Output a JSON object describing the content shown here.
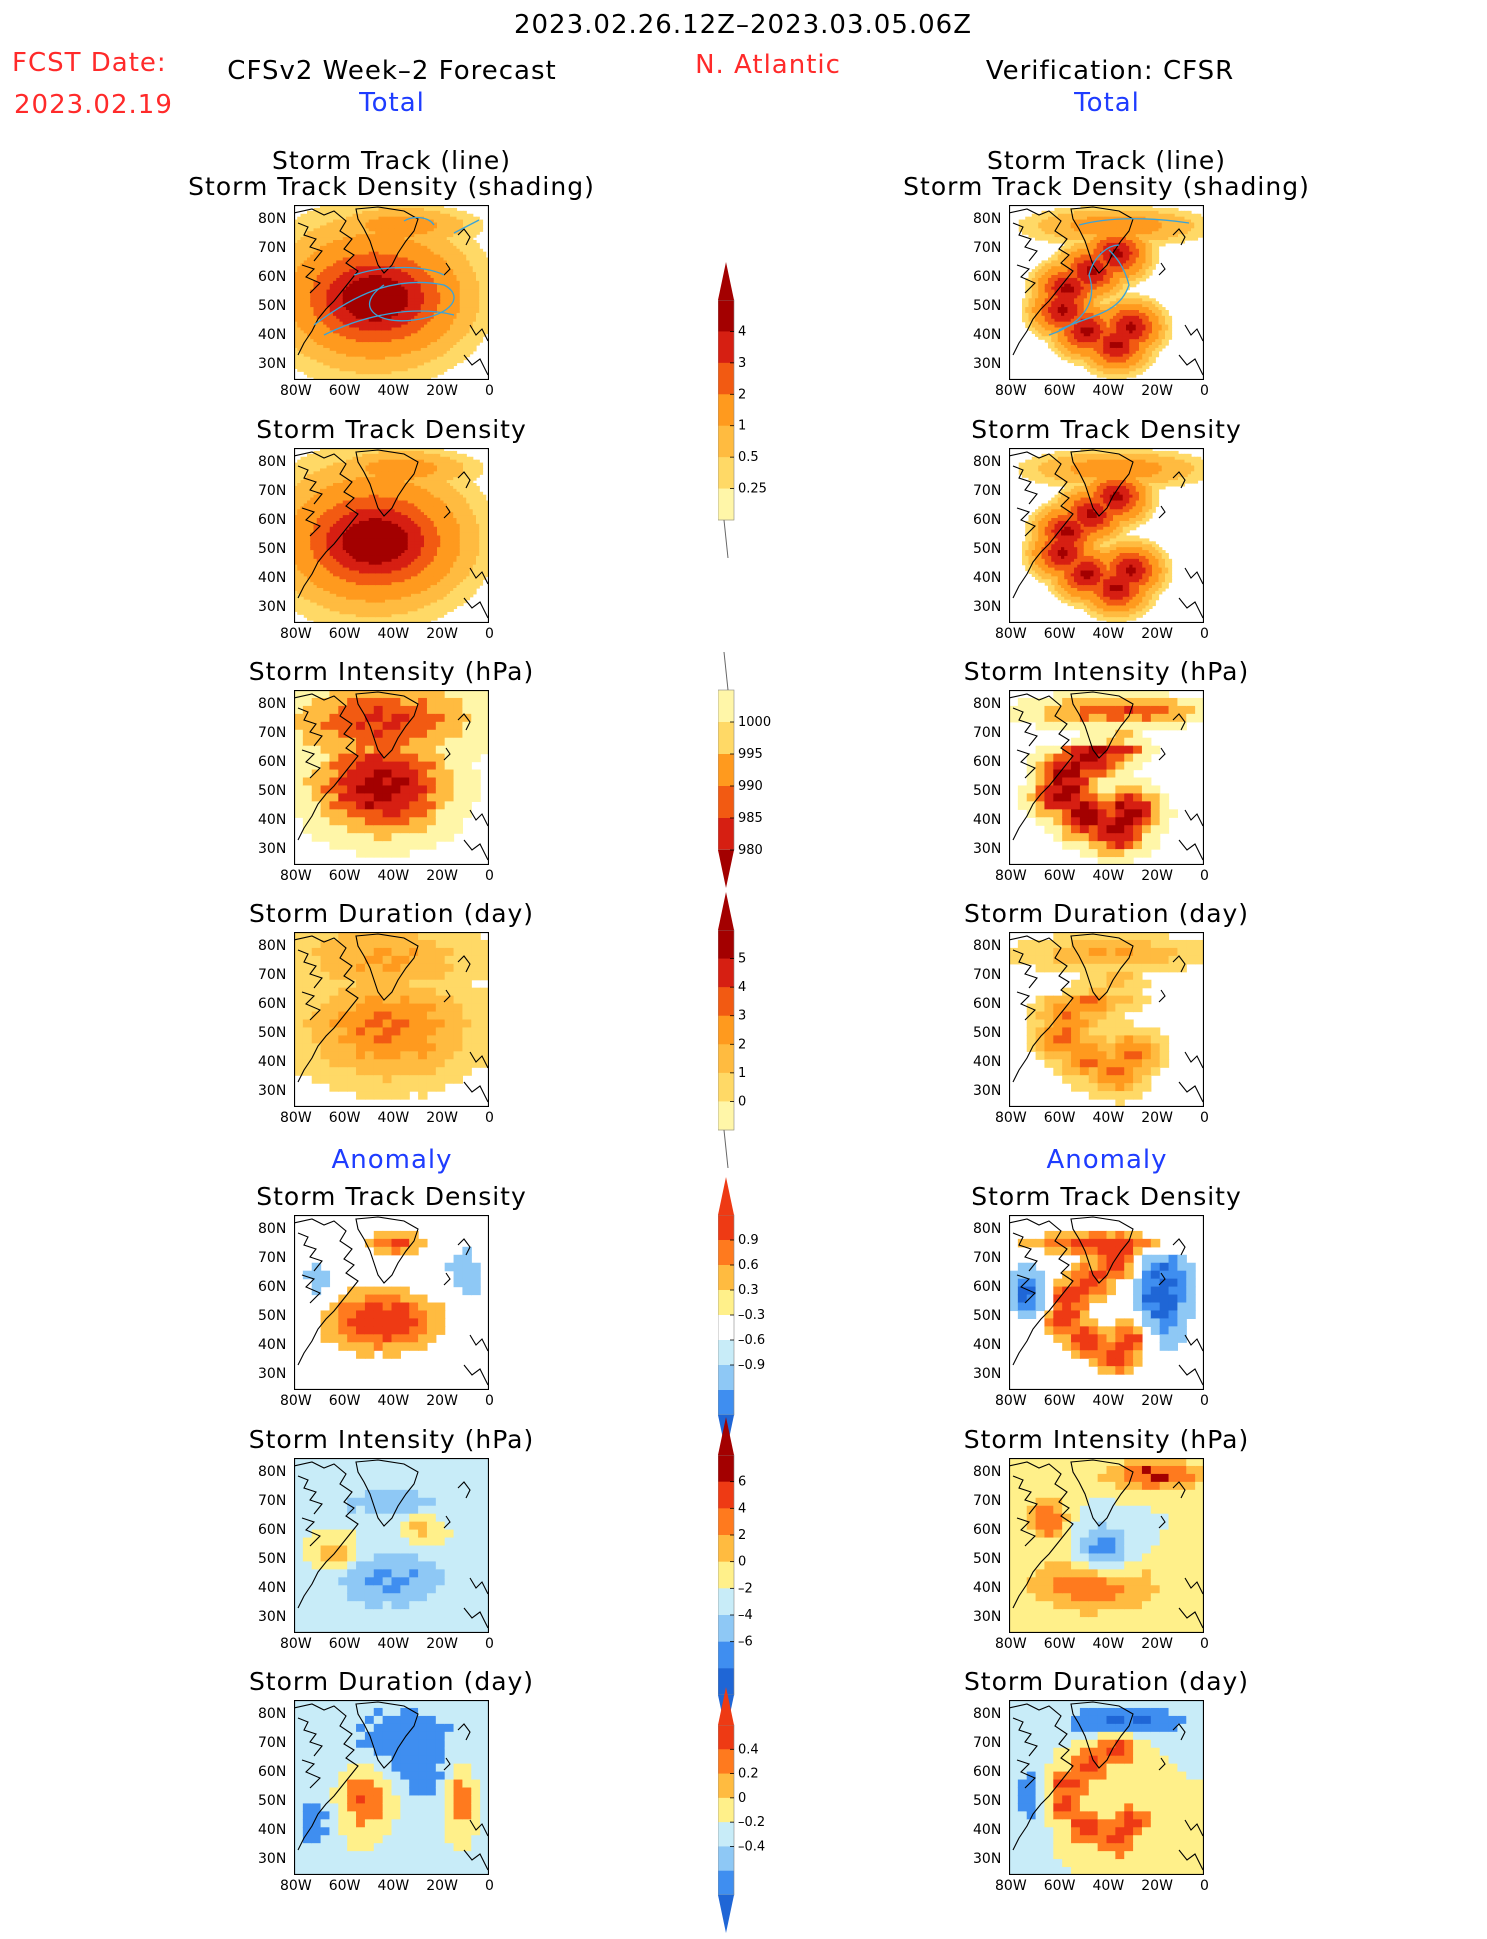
{
  "header": {
    "period": "2023.02.26.12Z–2023.03.05.06Z",
    "fcst_label": "FCST Date:",
    "fcst_date": "2023.02.19",
    "forecast_title": "CFSv2 Week–2 Forecast",
    "region": "N. Atlantic",
    "verification_title": "Verification: CFSR",
    "total_left": "Total",
    "total_right": "Total",
    "anomaly_left": "Anomaly",
    "anomaly_right": "Anomaly"
  },
  "axes": {
    "lon_labels": [
      "80W",
      "60W",
      "40W",
      "20W",
      "0"
    ],
    "lat_labels": [
      "80N",
      "70N",
      "60N",
      "50N",
      "40N",
      "30N"
    ]
  },
  "panel_titles": {
    "track_line_1": "Storm Track (line)",
    "track_line_2": "Storm Track Density (shading)",
    "density": "Storm Track Density",
    "intensity": "Storm Intensity (hPa)",
    "duration": "Storm Duration (day)"
  },
  "colors": {
    "seq": [
      "#fff6a8",
      "#ffd966",
      "#ffbb40",
      "#ff9a1e",
      "#f25a12",
      "#d61f12",
      "#a30000"
    ],
    "div": [
      "#1f66d6",
      "#3f8ef0",
      "#8ec8f5",
      "#c8ecf8",
      "#ffffff",
      "#fff08a",
      "#ffbb40",
      "#ff7a1e",
      "#ee3a14",
      "#a30000"
    ],
    "track_line": "#3aa3d8"
  },
  "colorbars": {
    "density_total": [
      "0.25",
      "0.5",
      "1",
      "2",
      "3",
      "4"
    ],
    "intensity_total": [
      "1000",
      "995",
      "990",
      "985",
      "980"
    ],
    "duration_total": [
      "0",
      "1",
      "2",
      "3",
      "4",
      "5"
    ],
    "density_anom": [
      "0.9",
      "0.6",
      "0.3",
      "–0.3",
      "–0.6",
      "–0.9"
    ],
    "intensity_anom": [
      "6",
      "4",
      "2",
      "0",
      "–2",
      "–4",
      "–6"
    ],
    "duration_anom": [
      "0.4",
      "0.2",
      "0",
      "–0.2",
      "–0.4"
    ]
  }
}
